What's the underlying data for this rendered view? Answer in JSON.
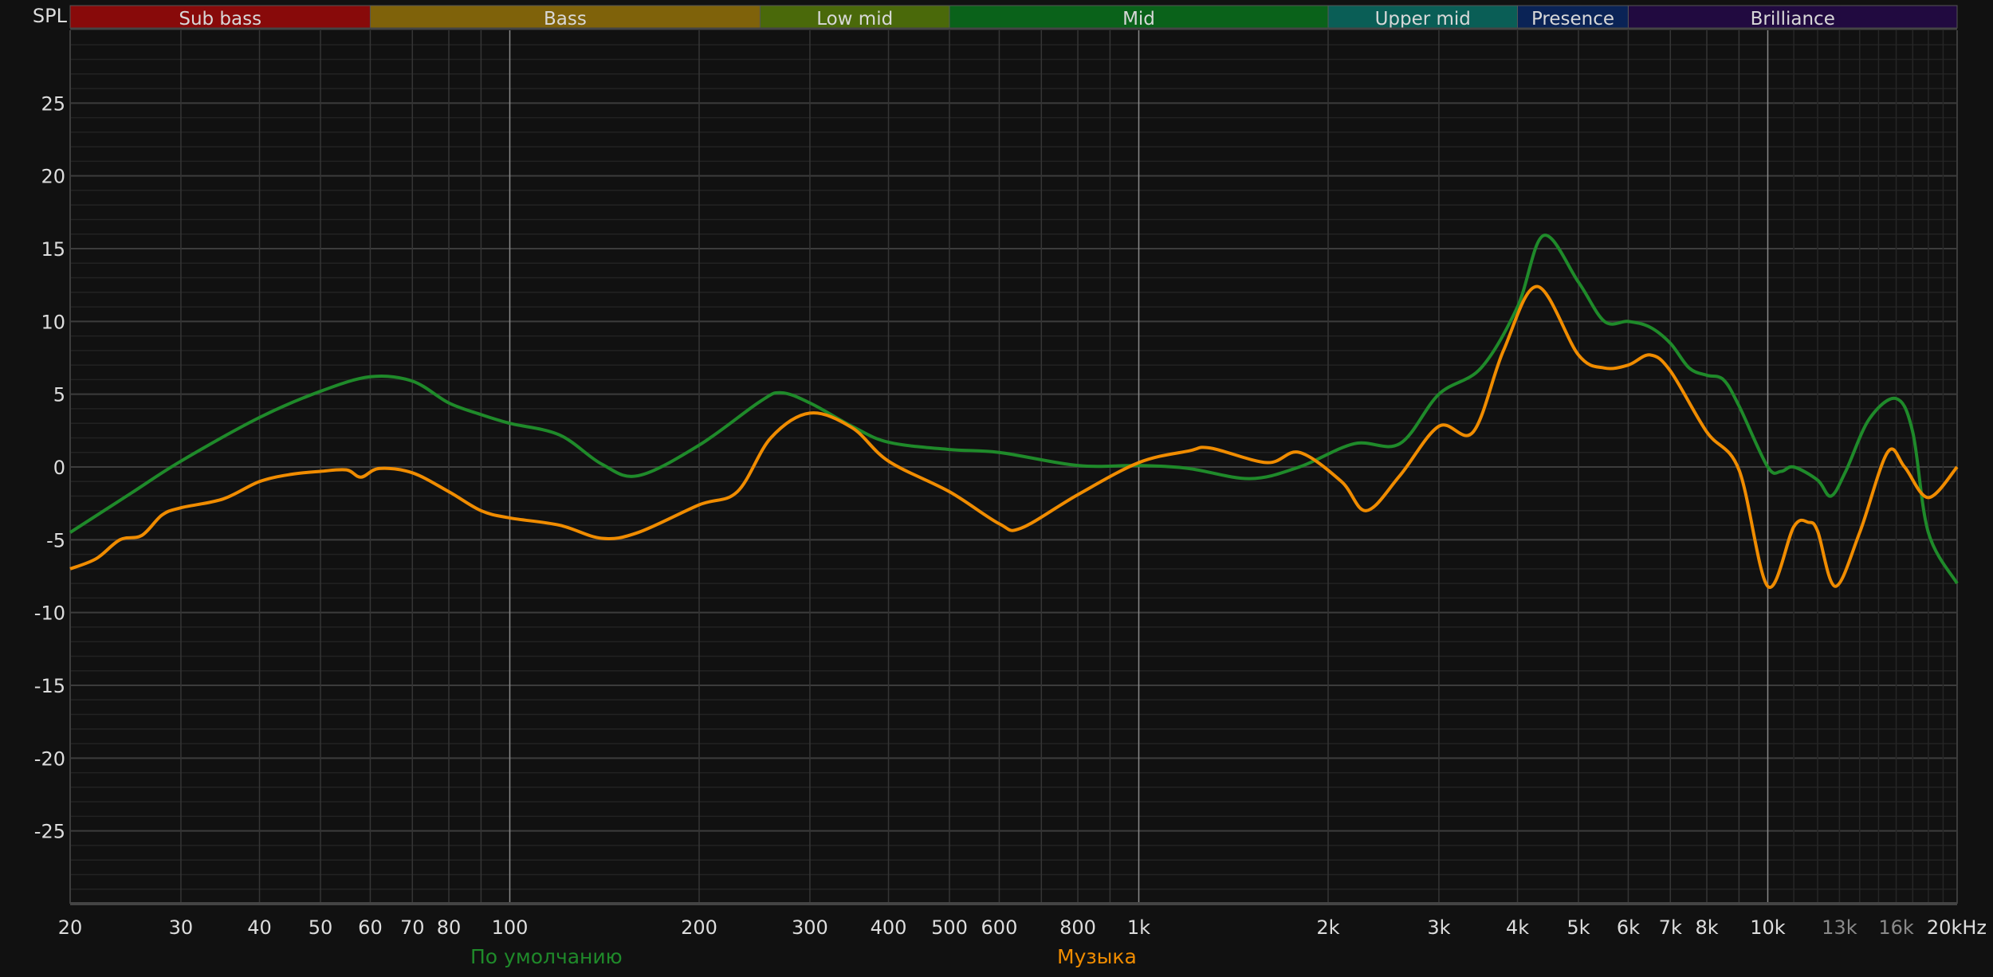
{
  "chart_data": {
    "type": "line",
    "ylabel": "SPL",
    "xscale": "log",
    "xlim": [
      20,
      20000
    ],
    "ylim": [
      -30,
      30
    ],
    "grid": true,
    "y_ticks": [
      25,
      20,
      15,
      10,
      5,
      0,
      -5,
      -10,
      -15,
      -20,
      -25
    ],
    "x_ticks": [
      {
        "f": 20,
        "label": "20"
      },
      {
        "f": 30,
        "label": "30"
      },
      {
        "f": 40,
        "label": "40"
      },
      {
        "f": 50,
        "label": "50"
      },
      {
        "f": 60,
        "label": "60"
      },
      {
        "f": 70,
        "label": "70"
      },
      {
        "f": 80,
        "label": "80"
      },
      {
        "f": 100,
        "label": "100"
      },
      {
        "f": 200,
        "label": "200"
      },
      {
        "f": 300,
        "label": "300"
      },
      {
        "f": 400,
        "label": "400"
      },
      {
        "f": 500,
        "label": "500"
      },
      {
        "f": 600,
        "label": "600"
      },
      {
        "f": 800,
        "label": "800"
      },
      {
        "f": 1000,
        "label": "1k"
      },
      {
        "f": 2000,
        "label": "2k"
      },
      {
        "f": 3000,
        "label": "3k"
      },
      {
        "f": 4000,
        "label": "4k"
      },
      {
        "f": 5000,
        "label": "5k"
      },
      {
        "f": 6000,
        "label": "6k"
      },
      {
        "f": 7000,
        "label": "7k"
      },
      {
        "f": 8000,
        "label": "8k"
      },
      {
        "f": 10000,
        "label": "10k"
      },
      {
        "f": 13000,
        "label": "13k",
        "dim": true
      },
      {
        "f": 16000,
        "label": "16k",
        "dim": true
      },
      {
        "f": 20000,
        "label": "20kHz"
      }
    ],
    "bands": [
      {
        "label": "Sub bass",
        "from": 20,
        "to": 60,
        "color": "#880a0a"
      },
      {
        "label": "Bass",
        "from": 60,
        "to": 250,
        "color": "#7f620a"
      },
      {
        "label": "Low mid",
        "from": 250,
        "to": 500,
        "color": "#4a690a"
      },
      {
        "label": "Mid",
        "from": 500,
        "to": 2000,
        "color": "#0a621a"
      },
      {
        "label": "Upper mid",
        "from": 2000,
        "to": 4000,
        "color": "#0a5e56"
      },
      {
        "label": "Presence",
        "from": 4000,
        "to": 6000,
        "color": "#0a2356"
      },
      {
        "label": "Brilliance",
        "from": 6000,
        "to": 20000,
        "color": "#210a40"
      }
    ],
    "series": [
      {
        "name": "По умолчанию",
        "color": "#1f8a2a",
        "points": [
          [
            20,
            -4.5
          ],
          [
            25,
            -1.8
          ],
          [
            30,
            0.4
          ],
          [
            40,
            3.4
          ],
          [
            50,
            5.2
          ],
          [
            60,
            6.2
          ],
          [
            70,
            5.9
          ],
          [
            80,
            4.4
          ],
          [
            90,
            3.6
          ],
          [
            100,
            3.0
          ],
          [
            120,
            2.2
          ],
          [
            140,
            0.2
          ],
          [
            160,
            -0.6
          ],
          [
            200,
            1.5
          ],
          [
            250,
            4.5
          ],
          [
            270,
            5.1
          ],
          [
            300,
            4.4
          ],
          [
            350,
            2.8
          ],
          [
            400,
            1.7
          ],
          [
            500,
            1.2
          ],
          [
            600,
            1.0
          ],
          [
            800,
            0.1
          ],
          [
            1000,
            0.1
          ],
          [
            1200,
            -0.1
          ],
          [
            1500,
            -0.8
          ],
          [
            1800,
            0.0
          ],
          [
            2200,
            1.6
          ],
          [
            2600,
            1.6
          ],
          [
            3000,
            5.0
          ],
          [
            3500,
            6.8
          ],
          [
            4000,
            11.0
          ],
          [
            4400,
            15.9
          ],
          [
            5000,
            12.7
          ],
          [
            5500,
            10.0
          ],
          [
            6000,
            10.0
          ],
          [
            6500,
            9.6
          ],
          [
            7000,
            8.5
          ],
          [
            7500,
            6.8
          ],
          [
            8000,
            6.3
          ],
          [
            8500,
            6.0
          ],
          [
            9000,
            4.2
          ],
          [
            10000,
            0.0
          ],
          [
            10500,
            -0.3
          ],
          [
            11000,
            0.0
          ],
          [
            12000,
            -0.9
          ],
          [
            12600,
            -2.0
          ],
          [
            13300,
            -0.3
          ],
          [
            14500,
            3.3
          ],
          [
            16000,
            4.7
          ],
          [
            17000,
            2.4
          ],
          [
            18000,
            -4.5
          ],
          [
            20000,
            -8.0
          ]
        ]
      },
      {
        "name": "Музыка",
        "color": "#f08c00",
        "points": [
          [
            20,
            -7.0
          ],
          [
            22,
            -6.3
          ],
          [
            24,
            -5.0
          ],
          [
            26,
            -4.7
          ],
          [
            28,
            -3.3
          ],
          [
            30,
            -2.8
          ],
          [
            35,
            -2.2
          ],
          [
            40,
            -1.0
          ],
          [
            45,
            -0.5
          ],
          [
            50,
            -0.3
          ],
          [
            55,
            -0.2
          ],
          [
            58,
            -0.7
          ],
          [
            62,
            -0.1
          ],
          [
            70,
            -0.4
          ],
          [
            80,
            -1.7
          ],
          [
            90,
            -3.0
          ],
          [
            100,
            -3.5
          ],
          [
            120,
            -4.0
          ],
          [
            140,
            -4.9
          ],
          [
            160,
            -4.5
          ],
          [
            200,
            -2.6
          ],
          [
            230,
            -1.7
          ],
          [
            260,
            2.0
          ],
          [
            300,
            3.7
          ],
          [
            350,
            2.7
          ],
          [
            400,
            0.4
          ],
          [
            500,
            -1.7
          ],
          [
            600,
            -3.9
          ],
          [
            650,
            -4.2
          ],
          [
            800,
            -1.9
          ],
          [
            1000,
            0.3
          ],
          [
            1200,
            1.1
          ],
          [
            1300,
            1.3
          ],
          [
            1600,
            0.3
          ],
          [
            1800,
            1.0
          ],
          [
            2100,
            -1.0
          ],
          [
            2300,
            -3.0
          ],
          [
            2600,
            -0.6
          ],
          [
            3000,
            2.8
          ],
          [
            3400,
            2.4
          ],
          [
            3800,
            8.0
          ],
          [
            4300,
            12.4
          ],
          [
            5000,
            7.7
          ],
          [
            5500,
            6.8
          ],
          [
            6000,
            7.0
          ],
          [
            6500,
            7.7
          ],
          [
            7000,
            6.6
          ],
          [
            8000,
            2.4
          ],
          [
            9000,
            -0.2
          ],
          [
            10000,
            -8.2
          ],
          [
            11000,
            -4.1
          ],
          [
            11600,
            -3.8
          ],
          [
            12000,
            -4.4
          ],
          [
            12800,
            -8.2
          ],
          [
            14000,
            -4.5
          ],
          [
            15500,
            1.0
          ],
          [
            16500,
            0.0
          ],
          [
            18000,
            -2.1
          ],
          [
            20000,
            0.0
          ]
        ]
      }
    ]
  }
}
